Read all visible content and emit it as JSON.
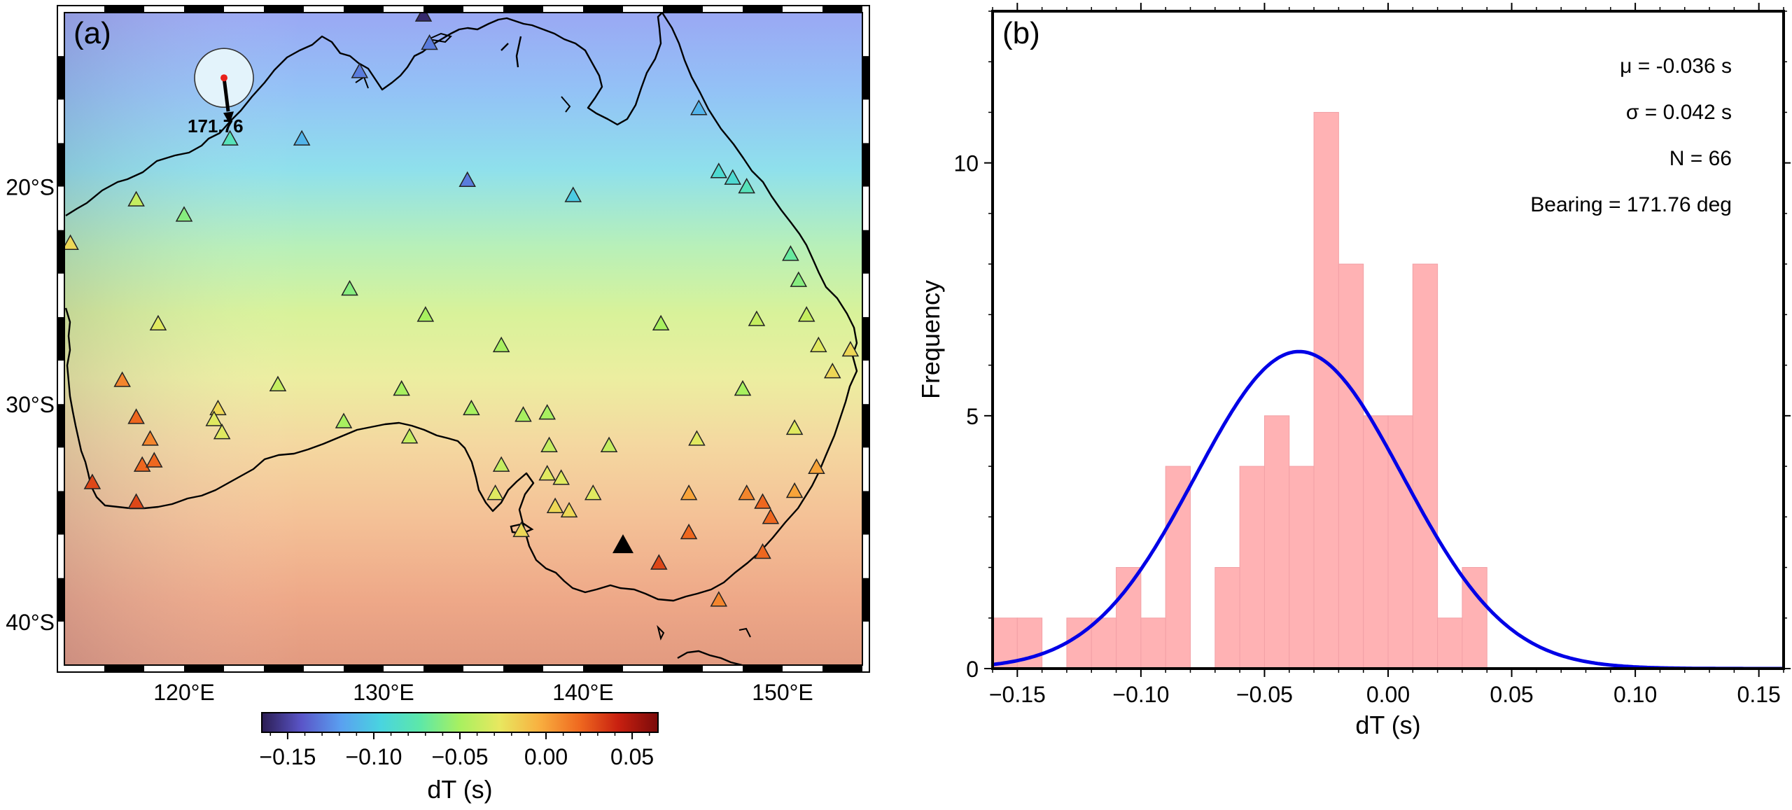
{
  "panel_a": {
    "label": "(a)",
    "lon_range": [
      114,
      154
    ],
    "lat_range": [
      -42,
      -12
    ],
    "lon_ticks": [
      "120°E",
      "130°E",
      "140°E",
      "150°E"
    ],
    "lat_ticks": [
      "20°S",
      "30°S",
      "40°S"
    ],
    "source_station": {
      "lon": 122,
      "lat": -15,
      "bearing_label": "171.76"
    },
    "reference_station": {
      "lon": 142,
      "lat": -36.5
    },
    "colorbar": {
      "title": "dT (s)",
      "range": [
        -0.165,
        0.065
      ],
      "ticks": [
        "−0.15",
        "−0.10",
        "−0.05",
        "0.00",
        "0.05"
      ],
      "tick_values": [
        -0.15,
        -0.1,
        -0.05,
        0.0,
        0.05
      ],
      "colors": [
        "#2b1d52",
        "#5a55c8",
        "#5aa0f0",
        "#49d4e0",
        "#5de8a8",
        "#a8f060",
        "#e8e860",
        "#f8b040",
        "#f06a20",
        "#c82010",
        "#7a0a0a"
      ]
    }
  },
  "chart_data": [
    {
      "type": "scatter",
      "panel": "(a)",
      "x_label": "",
      "y_label": "",
      "note": "station dT on map",
      "stations": [
        {
          "lon": 132.0,
          "lat": -12.1,
          "dt": -0.16
        },
        {
          "lon": 132.3,
          "lat": -13.4,
          "dt": -0.13
        },
        {
          "lon": 128.8,
          "lat": -14.7,
          "dt": -0.13
        },
        {
          "lon": 125.9,
          "lat": -17.8,
          "dt": -0.11
        },
        {
          "lon": 122.3,
          "lat": -17.8,
          "dt": -0.08
        },
        {
          "lon": 134.2,
          "lat": -19.7,
          "dt": -0.13
        },
        {
          "lon": 139.5,
          "lat": -20.4,
          "dt": -0.1
        },
        {
          "lon": 145.8,
          "lat": -16.4,
          "dt": -0.11
        },
        {
          "lon": 146.8,
          "lat": -19.3,
          "dt": -0.09
        },
        {
          "lon": 147.5,
          "lat": -19.6,
          "dt": -0.09
        },
        {
          "lon": 148.2,
          "lat": -20.0,
          "dt": -0.08
        },
        {
          "lon": 117.6,
          "lat": -20.6,
          "dt": -0.04
        },
        {
          "lon": 120.0,
          "lat": -21.3,
          "dt": -0.06
        },
        {
          "lon": 114.3,
          "lat": -22.6,
          "dt": -0.02
        },
        {
          "lon": 150.4,
          "lat": -23.1,
          "dt": -0.07
        },
        {
          "lon": 150.8,
          "lat": -24.3,
          "dt": -0.06
        },
        {
          "lon": 128.3,
          "lat": -24.7,
          "dt": -0.06
        },
        {
          "lon": 132.1,
          "lat": -25.9,
          "dt": -0.05
        },
        {
          "lon": 118.7,
          "lat": -26.3,
          "dt": -0.03
        },
        {
          "lon": 143.9,
          "lat": -26.3,
          "dt": -0.05
        },
        {
          "lon": 148.7,
          "lat": -26.1,
          "dt": -0.04
        },
        {
          "lon": 135.9,
          "lat": -27.3,
          "dt": -0.05
        },
        {
          "lon": 151.8,
          "lat": -27.3,
          "dt": -0.03
        },
        {
          "lon": 153.4,
          "lat": -27.5,
          "dt": -0.02
        },
        {
          "lon": 116.9,
          "lat": -28.9,
          "dt": 0.01
        },
        {
          "lon": 124.7,
          "lat": -29.1,
          "dt": -0.04
        },
        {
          "lon": 130.9,
          "lat": -29.3,
          "dt": -0.05
        },
        {
          "lon": 148.0,
          "lat": -29.3,
          "dt": -0.05
        },
        {
          "lon": 117.6,
          "lat": -30.6,
          "dt": 0.02
        },
        {
          "lon": 121.7,
          "lat": -30.2,
          "dt": -0.02
        },
        {
          "lon": 121.5,
          "lat": -30.7,
          "dt": -0.03
        },
        {
          "lon": 128.0,
          "lat": -30.8,
          "dt": -0.05
        },
        {
          "lon": 134.4,
          "lat": -30.2,
          "dt": -0.05
        },
        {
          "lon": 137.0,
          "lat": -30.5,
          "dt": -0.05
        },
        {
          "lon": 138.2,
          "lat": -30.4,
          "dt": -0.05
        },
        {
          "lon": 150.6,
          "lat": -31.1,
          "dt": -0.03
        },
        {
          "lon": 121.9,
          "lat": -31.3,
          "dt": -0.03
        },
        {
          "lon": 131.3,
          "lat": -31.5,
          "dt": -0.04
        },
        {
          "lon": 145.7,
          "lat": -31.6,
          "dt": -0.03
        },
        {
          "lon": 118.3,
          "lat": -31.6,
          "dt": 0.01
        },
        {
          "lon": 138.3,
          "lat": -31.9,
          "dt": -0.04
        },
        {
          "lon": 141.3,
          "lat": -31.9,
          "dt": -0.04
        },
        {
          "lon": 117.9,
          "lat": -32.8,
          "dt": 0.02
        },
        {
          "lon": 118.5,
          "lat": -32.6,
          "dt": 0.02
        },
        {
          "lon": 151.7,
          "lat": -32.9,
          "dt": 0.0
        },
        {
          "lon": 135.9,
          "lat": -32.8,
          "dt": -0.04
        },
        {
          "lon": 138.2,
          "lat": -33.2,
          "dt": -0.03
        },
        {
          "lon": 138.9,
          "lat": -33.4,
          "dt": -0.03
        },
        {
          "lon": 115.4,
          "lat": -33.6,
          "dt": 0.03
        },
        {
          "lon": 135.6,
          "lat": -34.1,
          "dt": -0.03
        },
        {
          "lon": 140.5,
          "lat": -34.1,
          "dt": -0.03
        },
        {
          "lon": 145.3,
          "lat": -34.1,
          "dt": 0.0
        },
        {
          "lon": 148.2,
          "lat": -34.1,
          "dt": 0.01
        },
        {
          "lon": 150.6,
          "lat": -34.0,
          "dt": 0.0
        },
        {
          "lon": 117.6,
          "lat": -34.5,
          "dt": 0.03
        },
        {
          "lon": 149.0,
          "lat": -34.5,
          "dt": 0.02
        },
        {
          "lon": 138.6,
          "lat": -34.7,
          "dt": -0.02
        },
        {
          "lon": 139.3,
          "lat": -34.9,
          "dt": -0.02
        },
        {
          "lon": 149.4,
          "lat": -35.2,
          "dt": 0.02
        },
        {
          "lon": 136.9,
          "lat": -35.8,
          "dt": -0.02
        },
        {
          "lon": 145.3,
          "lat": -35.9,
          "dt": 0.02
        },
        {
          "lon": 149.0,
          "lat": -36.8,
          "dt": 0.02
        },
        {
          "lon": 143.8,
          "lat": -37.3,
          "dt": 0.03
        },
        {
          "lon": 146.8,
          "lat": -39.0,
          "dt": 0.01
        },
        {
          "lon": 151.2,
          "lat": -25.9,
          "dt": -0.04
        },
        {
          "lon": 152.5,
          "lat": -28.5,
          "dt": -0.02
        }
      ]
    },
    {
      "type": "bar",
      "panel": "(b)",
      "title": "",
      "xlabel": "dT (s)",
      "ylabel": "Frequency",
      "xlim": [
        -0.16,
        0.16
      ],
      "ylim": [
        0,
        13
      ],
      "bin_width": 0.01,
      "bin_starts": [
        -0.16,
        -0.15,
        -0.13,
        -0.12,
        -0.11,
        -0.1,
        -0.09,
        -0.07,
        -0.06,
        -0.05,
        -0.04,
        -0.03,
        -0.02,
        -0.01,
        0.0,
        0.01,
        0.02,
        0.03
      ],
      "values": [
        1,
        1,
        1,
        1,
        2,
        1,
        4,
        2,
        4,
        5,
        4,
        11,
        8,
        5,
        5,
        8,
        1,
        2
      ],
      "x_ticks": [
        "−0.15",
        "−0.10",
        "−0.05",
        "0.00",
        "0.05",
        "0.10",
        "0.15"
      ],
      "x_tick_values": [
        -0.15,
        -0.1,
        -0.05,
        0.0,
        0.05,
        0.1,
        0.15
      ],
      "y_ticks": [
        "0",
        "5",
        "10"
      ],
      "y_tick_values": [
        0,
        5,
        10
      ],
      "normal_fit": {
        "mu": -0.036,
        "sigma": 0.042,
        "n": 66
      },
      "bar_color": "#ffb2b4",
      "curve_color": "#0000e6"
    }
  ],
  "panel_b": {
    "label": "(b)",
    "stats": [
      "μ = -0.036 s",
      "σ = 0.042 s",
      "N = 66",
      "Bearing = 171.76 deg"
    ]
  }
}
